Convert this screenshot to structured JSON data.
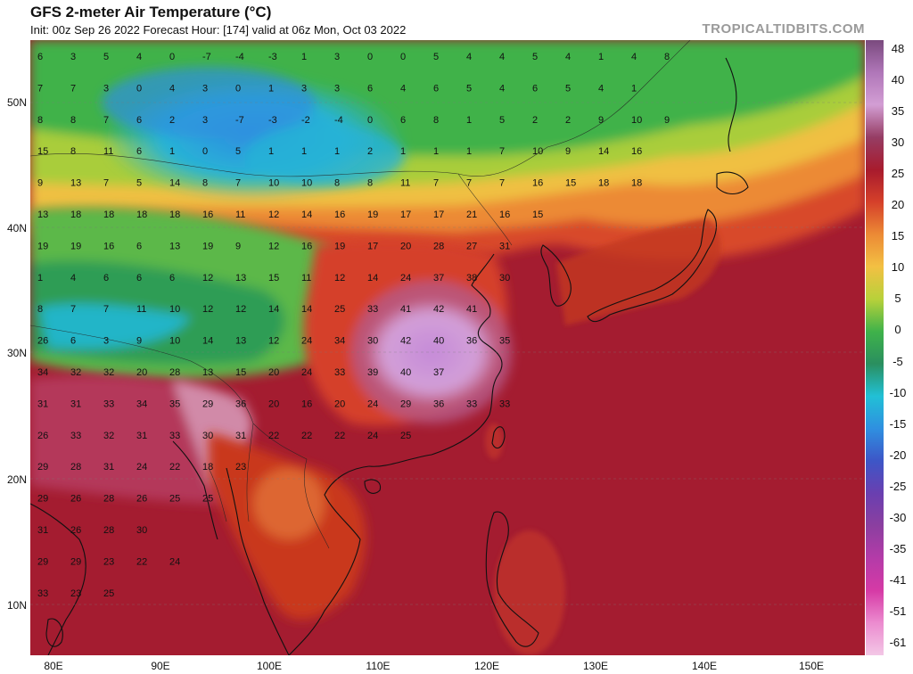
{
  "header": {
    "title": "GFS 2-meter Air Temperature (°C)",
    "subtitle": "Init: 00z Sep 26 2022   Forecast Hour: [174]   valid at 06z Mon, Oct 03 2022",
    "brand": "TROPICALTIDBITS.COM"
  },
  "axes": {
    "lat_labels": [
      "50N",
      "40N",
      "30N",
      "20N",
      "10N"
    ],
    "lon_labels": [
      "80E",
      "90E",
      "100E",
      "110E",
      "120E",
      "130E",
      "140E",
      "150E"
    ]
  },
  "colorbar": {
    "ticks": [
      "48",
      "40",
      "35",
      "30",
      "25",
      "20",
      "15",
      "10",
      "5",
      "0",
      "-5",
      "-10",
      "-15",
      "-20",
      "-25",
      "-30",
      "-35",
      "-41",
      "-51",
      "-61"
    ],
    "colors": [
      "#7a4a7e",
      "#b077b9",
      "#d39ed4",
      "#963d64",
      "#a81b2d",
      "#d5402a",
      "#ec8a35",
      "#f3c043",
      "#b8d13a",
      "#3fb24a",
      "#2a8f5f",
      "#21c0d6",
      "#2f8fe0",
      "#3d56c7",
      "#6a3fb0",
      "#8b3fa0",
      "#b43ba8",
      "#d63aa6",
      "#ec8bcf",
      "#f3c7e6"
    ]
  },
  "values": [
    [
      6,
      3,
      5,
      4,
      0,
      -7,
      -4,
      -3,
      1,
      3,
      0,
      0,
      5,
      4,
      4,
      5,
      4,
      1,
      4,
      8
    ],
    [
      7,
      7,
      3,
      0,
      4,
      3,
      0,
      1,
      3,
      3,
      6,
      4,
      6,
      5,
      4,
      6,
      5,
      4,
      1
    ],
    [
      8,
      8,
      7,
      6,
      2,
      3,
      -7,
      -3,
      -2,
      -4,
      0,
      6,
      8,
      1,
      5,
      2,
      2,
      9,
      10,
      9
    ],
    [
      15,
      8,
      11,
      6,
      1,
      0,
      5,
      1,
      1,
      1,
      2,
      1,
      1,
      1,
      7,
      10,
      9,
      14,
      16
    ],
    [
      9,
      13,
      7,
      5,
      14,
      8,
      7,
      10,
      10,
      8,
      8,
      11,
      7,
      7,
      7,
      16,
      15,
      18,
      18
    ],
    [
      13,
      18,
      18,
      18,
      18,
      16,
      11,
      12,
      14,
      16,
      19,
      17,
      17,
      21,
      16,
      15
    ],
    [
      19,
      19,
      16,
      6,
      13,
      19,
      9,
      12,
      16,
      19,
      17,
      20,
      28,
      27,
      31
    ],
    [
      1,
      4,
      6,
      6,
      6,
      12,
      13,
      15,
      11,
      12,
      14,
      24,
      37,
      38,
      30
    ],
    [
      8,
      7,
      7,
      11,
      10,
      12,
      12,
      14,
      14,
      25,
      33,
      41,
      42,
      41
    ],
    [
      26,
      6,
      3,
      9,
      10,
      14,
      13,
      12,
      24,
      34,
      30,
      42,
      40,
      36,
      35
    ],
    [
      34,
      32,
      32,
      20,
      28,
      13,
      15,
      20,
      24,
      33,
      39,
      40,
      37
    ],
    [
      31,
      31,
      33,
      34,
      35,
      29,
      36,
      20,
      16,
      20,
      24,
      29,
      36,
      33,
      33
    ],
    [
      26,
      33,
      32,
      31,
      33,
      30,
      31,
      22,
      22,
      22,
      24,
      25
    ],
    [
      29,
      28,
      31,
      24,
      22,
      18,
      23
    ],
    [
      29,
      26,
      28,
      26,
      25,
      25
    ],
    [
      31,
      26,
      28,
      30
    ],
    [
      29,
      29,
      23,
      22,
      24
    ],
    [
      33,
      23,
      25
    ]
  ]
}
